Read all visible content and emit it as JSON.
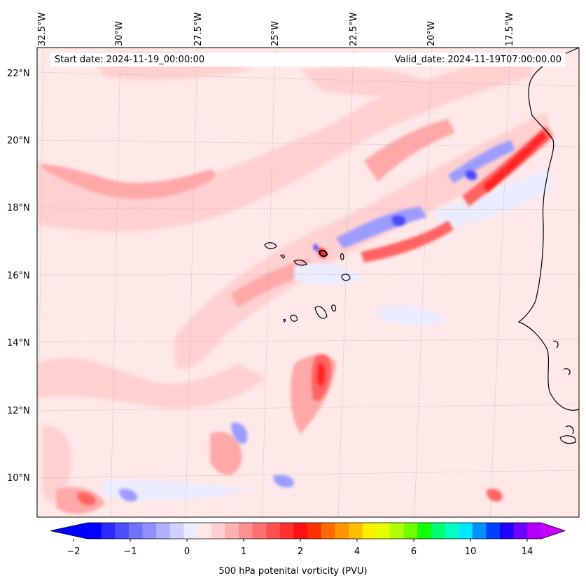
{
  "map": {
    "lon_labels": [
      "32.5°W",
      "30°W",
      "27.5°W",
      "25°W",
      "22.5°W",
      "20°W",
      "17.5°W"
    ],
    "lat_labels": [
      "22°N",
      "20°N",
      "18°N",
      "16°N",
      "14°N",
      "12°N",
      "10°N"
    ],
    "start_date_text": "Start date: 2024-11-19_00:00:00",
    "valid_date_text": "Valid_date: 2024-11-19T07:00:00.00",
    "field_colors": {
      "background": "#ffe8e8",
      "light_blue": "#ececff",
      "blue": "#9c9cff",
      "deep_blue": "#4a4aff",
      "pink": "#ffd0d0",
      "salmon": "#ffa8a8",
      "red": "#ff6464",
      "deep_red": "#ff2020",
      "coast": "#000000"
    }
  },
  "colorbar": {
    "label": "500 hPa potenital vorticity (PVU)",
    "ticks": [
      "−2",
      "−1",
      "0",
      "1",
      "2",
      "4",
      "6",
      "10",
      "14"
    ],
    "colors": [
      "#0000ff",
      "#2a2aff",
      "#4e4eff",
      "#7070ff",
      "#9090ff",
      "#b0b0ff",
      "#d0d0ff",
      "#ececff",
      "#ffe8e8",
      "#ffd0d0",
      "#ffb0b0",
      "#ff9090",
      "#ff7070",
      "#ff5050",
      "#ff3030",
      "#ff1010",
      "#ff3000",
      "#ff6a00",
      "#ff9600",
      "#ffbf00",
      "#fff000",
      "#e6ff00",
      "#b0ff00",
      "#70ff00",
      "#10ff00",
      "#00ff70",
      "#00ffc0",
      "#00e8ff",
      "#0090ff",
      "#0040ff",
      "#2000ff",
      "#7000ff",
      "#b000ff"
    ],
    "extend_min_color": "#0000ff",
    "extend_max_color": "#c800ff"
  }
}
